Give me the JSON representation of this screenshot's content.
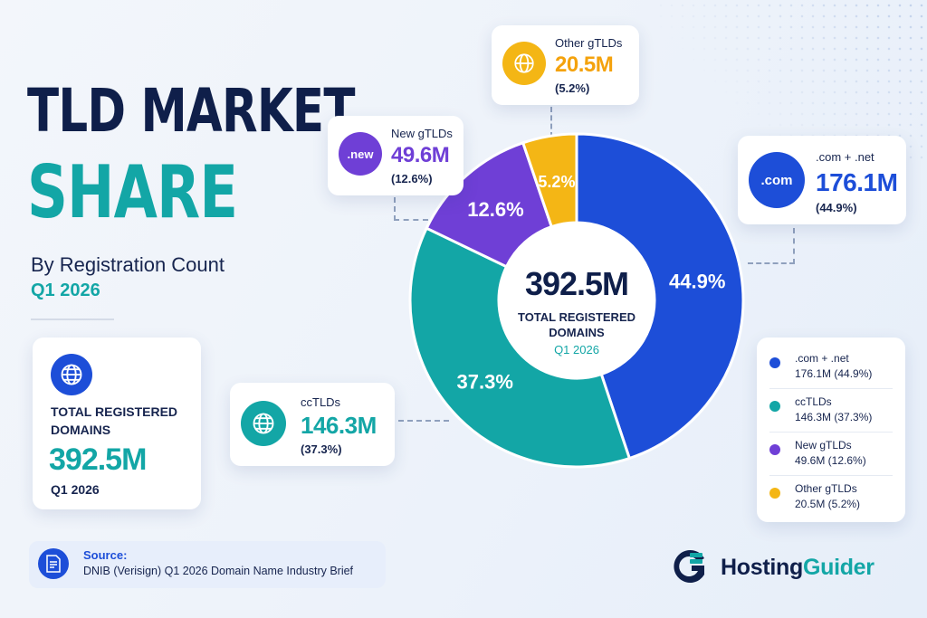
{
  "header": {
    "title_line1": "TLD MARKET",
    "title_line2": "SHARE",
    "subtitle": "By Registration Count",
    "period": "Q1 2026"
  },
  "total_card": {
    "label": "TOTAL REGISTERED DOMAINS",
    "value": "392.5M",
    "period": "Q1 2026"
  },
  "source": {
    "title": "Source:",
    "text": "DNIB (Verisign) Q1 2026 Domain Name Industry Brief"
  },
  "donut_center": {
    "value": "392.5M",
    "label": "TOTAL REGISTERED DOMAINS",
    "period": "Q1 2026"
  },
  "segment_cards": {
    "com": {
      "icon_text": ".com",
      "name": ".com + .net",
      "value": "176.1M",
      "pct": "(44.9%)"
    },
    "cc": {
      "name": "ccTLDs",
      "value": "146.3M",
      "pct": "(37.3%)"
    },
    "new": {
      "icon_text": ".new",
      "name": "New gTLDs",
      "value": "49.6M",
      "pct": "(12.6%)"
    },
    "other": {
      "name": "Other gTLDs",
      "value": "20.5M",
      "pct": "(5.2%)"
    }
  },
  "legend": [
    {
      "name": ".com + .net",
      "detail": "176.1M (44.9%)",
      "color": "#1d4ed8"
    },
    {
      "name": "ccTLDs",
      "detail": "146.3M (37.3%)",
      "color": "#13a6a6"
    },
    {
      "name": "New gTLDs",
      "detail": "49.6M (12.6%)",
      "color": "#6f3fd6"
    },
    {
      "name": "Other gTLDs",
      "detail": "20.5M (5.2%)",
      "color": "#f4b615"
    }
  ],
  "brand": {
    "name_a": "Hosting",
    "name_b": "Guider"
  },
  "chart_data": {
    "type": "pie",
    "title": "TLD MARKET SHARE",
    "subtitle": "By Registration Count",
    "total": "392.5M",
    "slices": [
      {
        "label": ".com + .net",
        "value": 176.1,
        "percent": 44.9,
        "percent_label": "44.9%",
        "color": "#1d4ed8"
      },
      {
        "label": "ccTLDs",
        "value": 146.3,
        "percent": 37.3,
        "percent_label": "37.3%",
        "color": "#13a6a6"
      },
      {
        "label": "New gTLDs",
        "value": 49.6,
        "percent": 12.6,
        "percent_label": "12.6%",
        "color": "#6f3fd6"
      },
      {
        "label": "Other gTLDs",
        "value": 20.5,
        "percent": 5.2,
        "percent_label": "5.2%",
        "color": "#f4b615"
      }
    ]
  }
}
